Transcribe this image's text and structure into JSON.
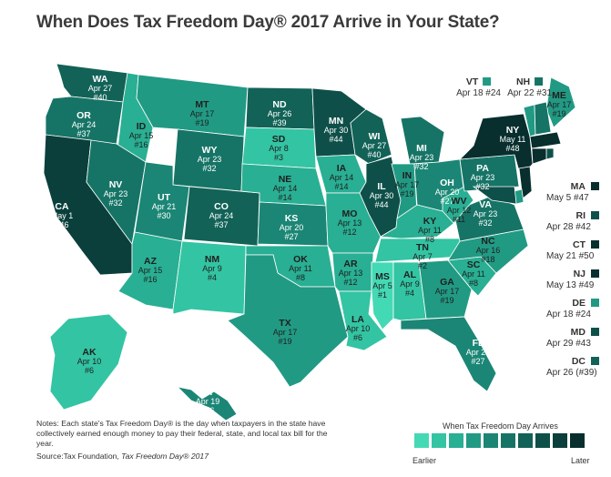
{
  "title": "When Does Tax Freedom Day® 2017 Arrive in Your State?",
  "map_states": [
    {
      "abbr": "WA",
      "date": "Apr 27",
      "rank": "#40",
      "shade": 6
    },
    {
      "abbr": "OR",
      "date": "Apr 24",
      "rank": "#37",
      "shade": 5
    },
    {
      "abbr": "CA",
      "date": "May 1",
      "rank": "#46",
      "shade": 8
    },
    {
      "abbr": "ID",
      "date": "Apr 15",
      "rank": "#16",
      "shade": 2
    },
    {
      "abbr": "NV",
      "date": "Apr 23",
      "rank": "#32",
      "shade": 5
    },
    {
      "abbr": "MT",
      "date": "Apr 17",
      "rank": "#19",
      "shade": 3
    },
    {
      "abbr": "WY",
      "date": "Apr 23",
      "rank": "#32",
      "shade": 5
    },
    {
      "abbr": "UT",
      "date": "Apr 21",
      "rank": "#30",
      "shade": 4
    },
    {
      "abbr": "AZ",
      "date": "Apr 15",
      "rank": "#16",
      "shade": 2
    },
    {
      "abbr": "CO",
      "date": "Apr 24",
      "rank": "#37",
      "shade": 6
    },
    {
      "abbr": "NM",
      "date": "Apr 9",
      "rank": "#4",
      "shade": 1
    },
    {
      "abbr": "ND",
      "date": "Apr 26",
      "rank": "#39",
      "shade": 6
    },
    {
      "abbr": "SD",
      "date": "Apr 8",
      "rank": "#3",
      "shade": 1
    },
    {
      "abbr": "NE",
      "date": "Apr 14",
      "rank": "#14",
      "shade": 2
    },
    {
      "abbr": "KS",
      "date": "Apr 20",
      "rank": "#27",
      "shade": 4
    },
    {
      "abbr": "OK",
      "date": "Apr 11",
      "rank": "#8",
      "shade": 2
    },
    {
      "abbr": "TX",
      "date": "Apr 17",
      "rank": "#19",
      "shade": 3
    },
    {
      "abbr": "MN",
      "date": "Apr 30",
      "rank": "#44",
      "shade": 7
    },
    {
      "abbr": "IA",
      "date": "Apr 14",
      "rank": "#14",
      "shade": 2
    },
    {
      "abbr": "MO",
      "date": "Apr 13",
      "rank": "#12",
      "shade": 2
    },
    {
      "abbr": "AR",
      "date": "Apr 13",
      "rank": "#12",
      "shade": 2
    },
    {
      "abbr": "LA",
      "date": "Apr 10",
      "rank": "#6",
      "shade": 1
    },
    {
      "abbr": "WI",
      "date": "Apr 27",
      "rank": "#40",
      "shade": 6
    },
    {
      "abbr": "IL",
      "date": "Apr 30",
      "rank": "#44",
      "shade": 7
    },
    {
      "abbr": "MI",
      "date": "Apr 23",
      "rank": "#32",
      "shade": 5
    },
    {
      "abbr": "IN",
      "date": "Apr 17",
      "rank": "#19",
      "shade": 3
    },
    {
      "abbr": "OH",
      "date": "Apr 20",
      "rank": "#27",
      "shade": 4
    },
    {
      "abbr": "KY",
      "date": "Apr 11",
      "rank": "#8",
      "shade": 2
    },
    {
      "abbr": "TN",
      "date": "Apr 7",
      "rank": "#2",
      "shade": 1
    },
    {
      "abbr": "MS",
      "date": "Apr 5",
      "rank": "#1",
      "shade": 0
    },
    {
      "abbr": "AL",
      "date": "Apr 9",
      "rank": "#4",
      "shade": 1
    },
    {
      "abbr": "GA",
      "date": "Apr 17",
      "rank": "#19",
      "shade": 3
    },
    {
      "abbr": "FL",
      "date": "Apr 20",
      "rank": "#27",
      "shade": 4
    },
    {
      "abbr": "SC",
      "date": "Apr 11",
      "rank": "#8",
      "shade": 2
    },
    {
      "abbr": "NC",
      "date": "Apr 16",
      "rank": "#18",
      "shade": 3
    },
    {
      "abbr": "VA",
      "date": "Apr 23",
      "rank": "#32",
      "shade": 5
    },
    {
      "abbr": "WV",
      "date": "Apr 12",
      "rank": "#11",
      "shade": 2
    },
    {
      "abbr": "PA",
      "date": "Apr 23",
      "rank": "#32",
      "shade": 5
    },
    {
      "abbr": "NY",
      "date": "May 11",
      "rank": "#48",
      "shade": 9
    },
    {
      "abbr": "ME",
      "date": "Apr 17",
      "rank": "#19",
      "shade": 3
    },
    {
      "abbr": "AK",
      "date": "Apr 10",
      "rank": "#6",
      "shade": 1
    },
    {
      "abbr": "HI",
      "date": "Apr 19",
      "rank": "#26",
      "shade": 4
    }
  ],
  "callouts_top": [
    {
      "abbr": "VT",
      "date": "Apr 18",
      "rank": "#24",
      "shade": 3
    },
    {
      "abbr": "NH",
      "date": "Apr 22",
      "rank": "#31",
      "shade": 5
    }
  ],
  "callouts_side": [
    {
      "abbr": "MA",
      "date": "May 5",
      "rank": "#47",
      "shade": 9
    },
    {
      "abbr": "RI",
      "date": "Apr 28",
      "rank": "#42",
      "shade": 7
    },
    {
      "abbr": "CT",
      "date": "May 21",
      "rank": "#50",
      "shade": 9
    },
    {
      "abbr": "NJ",
      "date": "May 13",
      "rank": "#49",
      "shade": 9
    },
    {
      "abbr": "DE",
      "date": "Apr 18",
      "rank": "#24",
      "shade": 3
    },
    {
      "abbr": "MD",
      "date": "Apr 29",
      "rank": "#43",
      "shade": 7
    },
    {
      "abbr": "DC",
      "date": "Apr 26",
      "rank": "(#39)",
      "shade": 6
    }
  ],
  "notes": "Notes: Each state's Tax Freedom Day® is the day when taxpayers in the state have collectively earned enough money to pay their federal, state, and local tax bill for the year.",
  "source_prefix": "Source:Tax Foundation, ",
  "source_name": "Tax Freedom Day® 2017",
  "legend": {
    "title": "When Tax Freedom Day Arrives",
    "earlier": "Earlier",
    "later": "Later",
    "colors": [
      "#44d9b5",
      "#33c4a3",
      "#29af93",
      "#219a84",
      "#1b8675",
      "#167466",
      "#126257",
      "#0e5049",
      "#0b3f3b",
      "#082e2e"
    ]
  }
}
